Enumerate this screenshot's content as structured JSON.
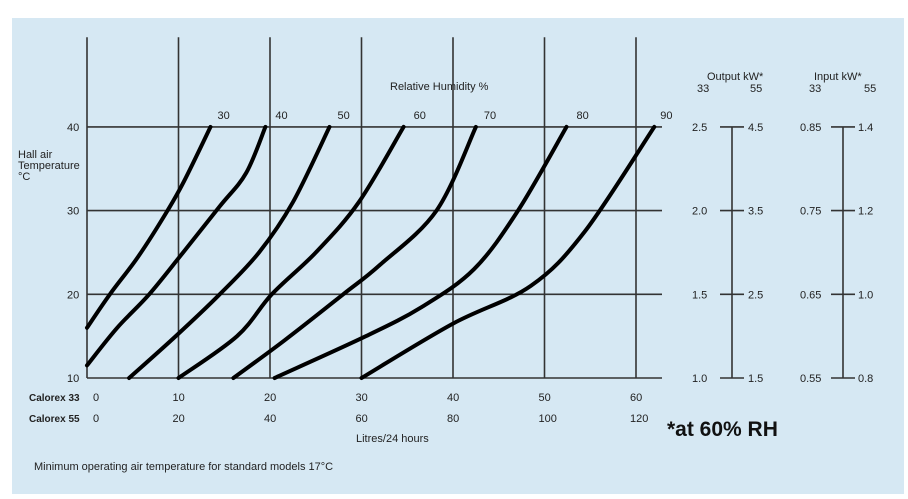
{
  "chart_data": {
    "type": "line",
    "title": "",
    "ylabel": "Hall air Temperature °C",
    "xlabel": "Litres/24 hours",
    "legend_title": "Relative Humidity %",
    "ylim": [
      10,
      50
    ],
    "y_ticks": [
      10,
      20,
      30,
      40
    ],
    "x_axes": [
      {
        "name": "Calorex 33",
        "ticks": [
          "0",
          "10",
          "20",
          "30",
          "40",
          "50",
          "60"
        ],
        "range": [
          0,
          60
        ]
      },
      {
        "name": "Calorex 55",
        "ticks": [
          "0",
          "20",
          "40",
          "60",
          "80",
          "100",
          "120"
        ],
        "range": [
          0,
          120
        ]
      }
    ],
    "series": [
      {
        "name": "30",
        "points": [
          [
            0,
            16
          ],
          [
            2.5,
            20
          ],
          [
            5.6,
            24.5
          ],
          [
            8.8,
            30
          ],
          [
            10.6,
            33.5
          ],
          [
            13.5,
            40
          ]
        ]
      },
      {
        "name": "40",
        "points": [
          [
            0,
            11.5
          ],
          [
            3.3,
            16
          ],
          [
            6.8,
            20
          ],
          [
            10.5,
            25
          ],
          [
            14.5,
            30.5
          ],
          [
            17.4,
            34.5
          ],
          [
            19.5,
            40
          ]
        ]
      },
      {
        "name": "50",
        "points": [
          [
            4.6,
            10
          ],
          [
            9.7,
            15
          ],
          [
            14.5,
            20
          ],
          [
            18.8,
            25
          ],
          [
            22.5,
            31
          ],
          [
            26.5,
            40
          ]
        ]
      },
      {
        "name": "60",
        "points": [
          [
            10,
            10
          ],
          [
            16.4,
            15
          ],
          [
            20.2,
            20
          ],
          [
            25,
            25
          ],
          [
            29.7,
            31
          ],
          [
            34.6,
            40
          ]
        ]
      },
      {
        "name": "70",
        "points": [
          [
            16,
            10
          ],
          [
            21.6,
            14.5
          ],
          [
            28,
            20
          ],
          [
            32,
            23.5
          ],
          [
            38.2,
            30
          ],
          [
            42.5,
            40
          ]
        ]
      },
      {
        "name": "80",
        "points": [
          [
            20.5,
            10
          ],
          [
            30.5,
            15
          ],
          [
            36.6,
            18.5
          ],
          [
            42.3,
            23
          ],
          [
            47.1,
            30
          ],
          [
            52.4,
            40
          ]
        ]
      },
      {
        "name": "90",
        "points": [
          [
            30,
            10
          ],
          [
            40,
            16.5
          ],
          [
            48.5,
            21
          ],
          [
            54.4,
            27.5
          ],
          [
            62,
            40
          ]
        ]
      }
    ],
    "scales": {
      "output": {
        "title": "Output kW*",
        "cols": [
          "33",
          "55"
        ],
        "rows": [
          {
            "left": "2.5",
            "right": "4.5"
          },
          {
            "left": "2.0",
            "right": "3.5"
          },
          {
            "left": "1.5",
            "right": "2.5"
          },
          {
            "left": "1.0",
            "right": "1.5"
          }
        ]
      },
      "input": {
        "title": "Input kW*",
        "cols": [
          "33",
          "55"
        ],
        "rows": [
          {
            "left": "0.85",
            "right": "1.4"
          },
          {
            "left": "0.75",
            "right": "1.2"
          },
          {
            "left": "0.65",
            "right": "1.0"
          },
          {
            "left": "0.55",
            "right": "0.8"
          }
        ]
      }
    },
    "note": "*at 60% RH",
    "footnote": "Minimum operating air temperature for standard models 17°C"
  }
}
